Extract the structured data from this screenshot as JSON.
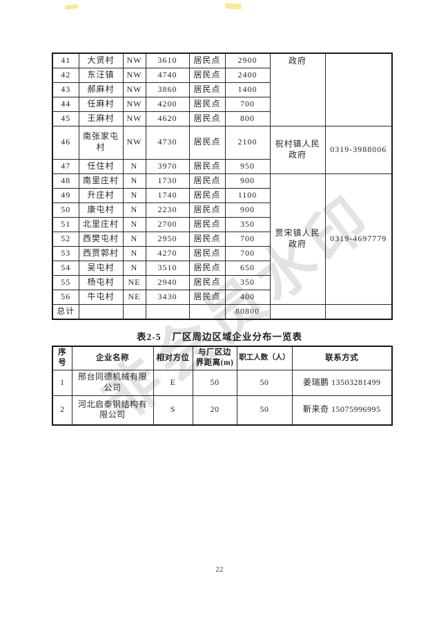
{
  "document": {
    "page_number": "22",
    "watermark_text": "非会员水印"
  },
  "village_table": {
    "rows": [
      {
        "no": "41",
        "name": "大贤村",
        "direction": "NW",
        "distance": "3610",
        "type": "居民点",
        "population": "2900"
      },
      {
        "no": "42",
        "name": "东汪镇",
        "direction": "NW",
        "distance": "4740",
        "type": "居民点",
        "population": "2400"
      },
      {
        "no": "43",
        "name": "郝麻村",
        "direction": "NW",
        "distance": "3860",
        "type": "居民点",
        "population": "1400"
      },
      {
        "no": "44",
        "name": "任麻村",
        "direction": "NW",
        "distance": "4200",
        "type": "居民点",
        "population": "700"
      },
      {
        "no": "45",
        "name": "王麻村",
        "direction": "NW",
        "distance": "4620",
        "type": "居民点",
        "population": "800"
      },
      {
        "no": "46",
        "name": "南张家屯村",
        "direction": "NW",
        "distance": "4730",
        "type": "居民点",
        "population": "2100",
        "tall": true
      },
      {
        "no": "47",
        "name": "任住村",
        "direction": "N",
        "distance": "3970",
        "type": "居民点",
        "population": "950"
      },
      {
        "no": "48",
        "name": "南里庄村",
        "direction": "N",
        "distance": "1730",
        "type": "居民点",
        "population": "900"
      },
      {
        "no": "49",
        "name": "升庄村",
        "direction": "N",
        "distance": "1740",
        "type": "居民点",
        "population": "1100"
      },
      {
        "no": "50",
        "name": "康屯村",
        "direction": "N",
        "distance": "2230",
        "type": "居民点",
        "population": "900"
      },
      {
        "no": "51",
        "name": "北里庄村",
        "direction": "N",
        "distance": "2700",
        "type": "居民点",
        "population": "350"
      },
      {
        "no": "52",
        "name": "西樊屯村",
        "direction": "N",
        "distance": "2950",
        "type": "居民点",
        "population": "700"
      },
      {
        "no": "53",
        "name": "西贾郭村",
        "direction": "N",
        "distance": "4270",
        "type": "居民点",
        "population": "700"
      },
      {
        "no": "54",
        "name": "吴屯村",
        "direction": "N",
        "distance": "3510",
        "type": "居民点",
        "population": "650"
      },
      {
        "no": "55",
        "name": "杨屯村",
        "direction": "NE",
        "distance": "2940",
        "type": "居民点",
        "population": "350"
      },
      {
        "no": "56",
        "name": "牛屯村",
        "direction": "NE",
        "distance": "3430",
        "type": "居民点",
        "population": "400"
      }
    ],
    "gov_groups": [
      {
        "start_no": "41",
        "span": 5,
        "gov": "政府",
        "phone": "",
        "top_align": true
      },
      {
        "start_no": "46",
        "span": 2,
        "gov": "祝村镇人民政府",
        "phone": "0319-3988006"
      },
      {
        "start_no": "48",
        "span": 9,
        "gov": "贾宋镇人民政府",
        "phone": "0319-4697779"
      }
    ],
    "total_label": "总计",
    "total_value": "80800"
  },
  "enterprise_table": {
    "caption_label": "表2-5",
    "caption_title": "厂区周边区域企业分布一览表",
    "headers": [
      "序号",
      "企业名称",
      "相对方位",
      "与厂区边界距离(m)",
      "职工人数（人）",
      "联系方式"
    ],
    "rows": [
      [
        "1",
        "邢台同德机械有限公司",
        "E",
        "50",
        "50",
        "姜瑞鹏 13503281499"
      ],
      [
        "2",
        "河北启泰钢结构有限公司",
        "S",
        "20",
        "50",
        "靳来奇 15075996995"
      ]
    ]
  }
}
